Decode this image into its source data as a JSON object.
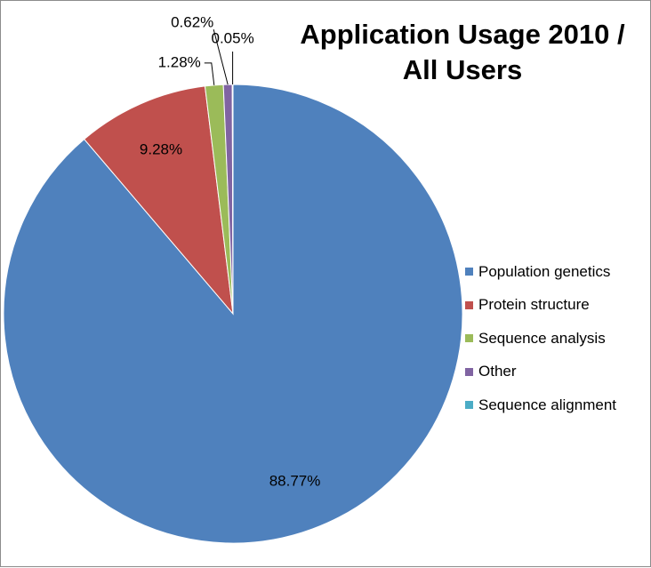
{
  "chart_data": {
    "type": "pie",
    "title_lines": [
      "Application Usage 2010 /",
      "All Users"
    ],
    "categories": [
      "Population genetics",
      "Protein structure",
      "Sequence analysis",
      "Other",
      "Sequence alignment"
    ],
    "values": [
      88.77,
      9.28,
      1.28,
      0.62,
      0.05
    ],
    "labels": [
      "88.77%",
      "9.28%",
      "1.28%",
      "0.62%",
      "0.05%"
    ],
    "colors": [
      "#4f81bd",
      "#c0504d",
      "#9bbb59",
      "#8064a2",
      "#4bacc6"
    ],
    "legend_position": "right"
  }
}
